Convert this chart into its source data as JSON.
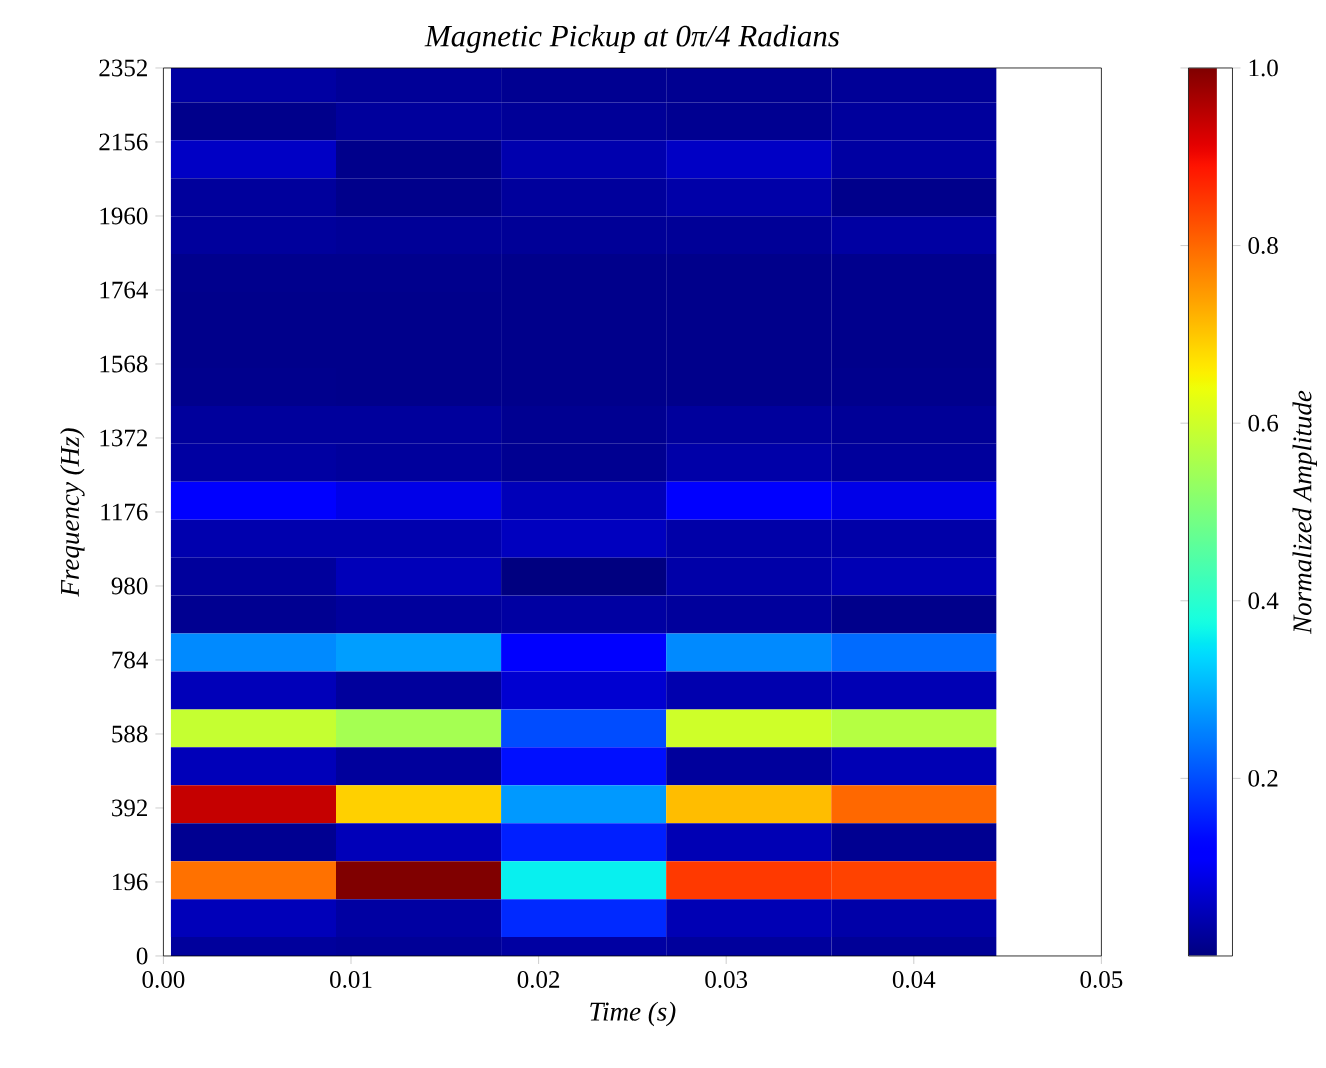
{
  "chart_data": {
    "type": "heatmap",
    "title": "Magnetic Pickup at 0π/4 Radians",
    "xlabel": "Time (s)",
    "ylabel": "Frequency (Hz)",
    "clabel": "Normalized Amplitude",
    "x": [
      0.0048,
      0.0136,
      0.0224,
      0.0312,
      0.04
    ],
    "y": [
      2311,
      2211,
      2110,
      2010,
      1909,
      1809,
      1708,
      1608,
      1507,
      1407,
      1306,
      1206,
      1105,
      1005,
      904,
      804,
      703,
      603,
      502,
      402,
      301,
      201,
      100,
      0
    ],
    "cells": [
      [
        0.03,
        0.02,
        0.015,
        0.015,
        0.02
      ],
      [
        0.01,
        0.025,
        0.02,
        0.015,
        0.025
      ],
      [
        0.06,
        0.01,
        0.04,
        0.06,
        0.03
      ],
      [
        0.025,
        0.01,
        0.025,
        0.035,
        0.01
      ],
      [
        0.025,
        0.02,
        0.02,
        0.02,
        0.03
      ],
      [
        0.012,
        0.012,
        0.01,
        0.01,
        0.012
      ],
      [
        0.01,
        0.01,
        0.01,
        0.01,
        0.012
      ],
      [
        0.01,
        0.01,
        0.01,
        0.01,
        0.01
      ],
      [
        0.012,
        0.01,
        0.01,
        0.01,
        0.012
      ],
      [
        0.025,
        0.025,
        0.015,
        0.025,
        0.02
      ],
      [
        0.03,
        0.025,
        0.015,
        0.035,
        0.025
      ],
      [
        0.11,
        0.09,
        0.05,
        0.11,
        0.09
      ],
      [
        0.04,
        0.04,
        0.055,
        0.035,
        0.035
      ],
      [
        0.025,
        0.05,
        0.0,
        0.035,
        0.045
      ],
      [
        0.015,
        0.025,
        0.03,
        0.025,
        0.01
      ],
      [
        0.26,
        0.28,
        0.12,
        0.26,
        0.23
      ],
      [
        0.05,
        0.025,
        0.07,
        0.04,
        0.045
      ],
      [
        0.59,
        0.55,
        0.2,
        0.6,
        0.57
      ],
      [
        0.05,
        0.025,
        0.14,
        0.025,
        0.045
      ],
      [
        0.94,
        0.69,
        0.275,
        0.71,
        0.8
      ],
      [
        0.015,
        0.05,
        0.155,
        0.045,
        0.015
      ],
      [
        0.79,
        1.0,
        0.36,
        0.85,
        0.84
      ],
      [
        0.05,
        0.03,
        0.165,
        0.045,
        0.035
      ],
      [
        0.025,
        0.02,
        0.03,
        0.025,
        0.02
      ]
    ],
    "xlim": [
      0,
      0.05
    ],
    "xticks": [
      {
        "value": 0,
        "label": "0.00"
      },
      {
        "value": 0.01,
        "label": "0.01"
      },
      {
        "value": 0.02,
        "label": "0.02"
      },
      {
        "value": 0.03,
        "label": "0.03"
      },
      {
        "value": 0.04,
        "label": "0.04"
      },
      {
        "value": 0.05,
        "label": "0.05"
      }
    ],
    "ylim": [
      0,
      2352
    ],
    "yticks": [
      0,
      196,
      392,
      588,
      784,
      980,
      1176,
      1372,
      1568,
      1764,
      1960,
      2156,
      2352
    ],
    "clim": [
      0,
      1
    ],
    "cticks": [
      {
        "value": 0.2,
        "label": "0.2"
      },
      {
        "value": 0.4,
        "label": "0.4"
      },
      {
        "value": 0.6,
        "label": "0.6"
      },
      {
        "value": 0.8,
        "label": "0.8"
      },
      {
        "value": 1.0,
        "label": "1.0"
      }
    ]
  }
}
